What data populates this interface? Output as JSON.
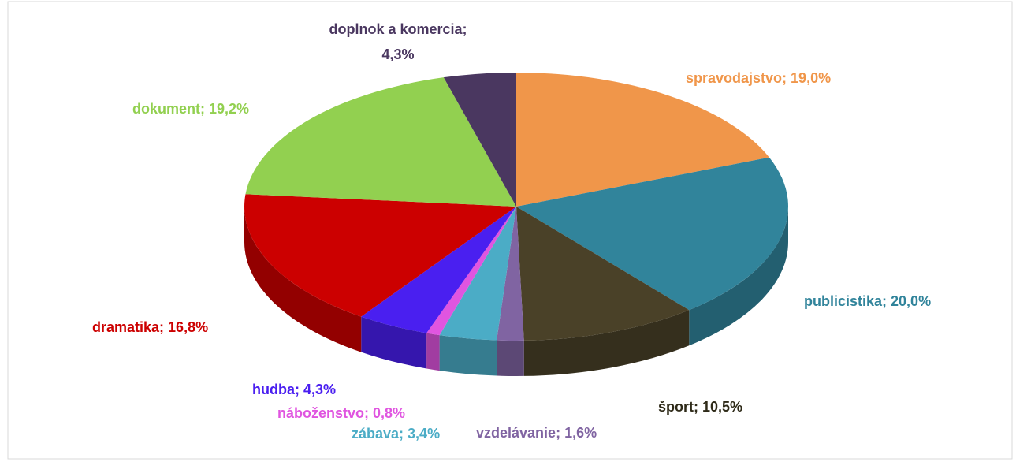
{
  "chart_data": {
    "type": "pie3d",
    "categories": [
      "spravodajstvo",
      "publicistika",
      "šport",
      "vzdelávanie",
      "zábava",
      "náboženstvo",
      "hudba",
      "dramatika",
      "dokument",
      "doplnok a komercia"
    ],
    "values": [
      19.0,
      20.0,
      10.5,
      1.6,
      3.4,
      0.8,
      4.3,
      16.8,
      19.2,
      4.3
    ],
    "value_labels": [
      "19,0%",
      "20,0%",
      "10,5%",
      "1,6%",
      "3,4%",
      "0,8%",
      "4,3%",
      "16,8%",
      "19,2%",
      "4,3%"
    ],
    "label_separator": ";",
    "colors": [
      "#f0964a",
      "#31849b",
      "#4a4128",
      "#8064a2",
      "#4bacc6",
      "#e055e0",
      "#4a1ff0",
      "#cc0000",
      "#92d050",
      "#4a3760"
    ]
  }
}
